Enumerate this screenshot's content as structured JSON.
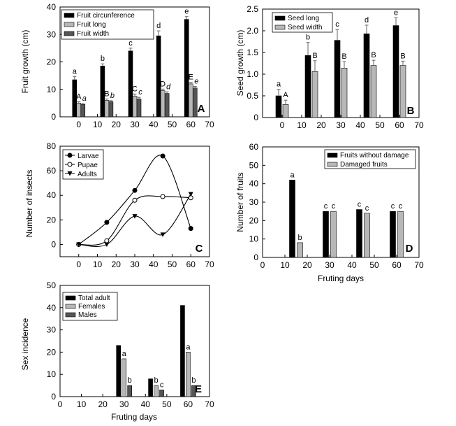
{
  "chart_data": [
    {
      "panel": "A",
      "type": "bar",
      "categories": [
        "0",
        "15",
        "30",
        "45",
        "60"
      ],
      "x_positions": [
        0,
        15,
        30,
        45,
        60
      ],
      "xticks": [
        "0",
        "10",
        "20",
        "30",
        "40",
        "50",
        "60",
        "70"
      ],
      "yticks": [
        "0",
        "10",
        "20",
        "30",
        "40"
      ],
      "xlim": [
        -10,
        70
      ],
      "ylim": [
        0,
        40
      ],
      "xlabel": "",
      "ylabel": "Fruit growth (cm)",
      "legend_position": "top-left",
      "series": [
        {
          "name": "Fruit circunference",
          "color": "#000000",
          "values": [
            13.5,
            18.5,
            24,
            29.5,
            35.5
          ],
          "errors": [
            1.2,
            0.8,
            1.0,
            1.8,
            1.0
          ],
          "letters": [
            "a",
            "b",
            "c",
            "d",
            "e"
          ]
        },
        {
          "name": "Fruit long",
          "color": "#b8b8b8",
          "values": [
            5,
            6,
            7.5,
            9.5,
            12
          ],
          "errors": [
            0.5,
            0.5,
            0.8,
            0.6,
            0.6
          ],
          "letters": [
            "A",
            "B",
            "C",
            "D",
            "E"
          ]
        },
        {
          "name": "Fruit width",
          "color": "#555555",
          "values": [
            4.5,
            5.5,
            6.5,
            8.5,
            10.5
          ],
          "errors": [
            0.4,
            0.4,
            0.6,
            0.6,
            0.6
          ],
          "letters": [
            "a",
            "b",
            "c",
            "d",
            "e"
          ]
        }
      ]
    },
    {
      "panel": "B",
      "type": "bar",
      "categories": [
        "0",
        "15",
        "30",
        "45",
        "60"
      ],
      "x_positions": [
        0,
        15,
        30,
        45,
        60
      ],
      "xticks": [
        "0",
        "10",
        "20",
        "30",
        "40",
        "50",
        "60",
        "70"
      ],
      "yticks": [
        "0",
        "0.5",
        "1.0",
        "1.5",
        "2.0",
        "2.5"
      ],
      "xlim": [
        -10,
        70
      ],
      "ylim": [
        0,
        2.5
      ],
      "xlabel": "",
      "ylabel": "Seed growth (cm)",
      "legend_position": "top-left",
      "series": [
        {
          "name": "Seed long",
          "color": "#000000",
          "values": [
            0.5,
            1.43,
            1.78,
            1.93,
            2.12
          ],
          "errors": [
            0.15,
            0.3,
            0.25,
            0.2,
            0.18
          ],
          "letters": [
            "a",
            "b",
            "c",
            "d",
            "e"
          ]
        },
        {
          "name": "Seed width",
          "color": "#b8b8b8",
          "values": [
            0.3,
            1.06,
            1.14,
            1.2,
            1.2
          ],
          "errors": [
            0.1,
            0.25,
            0.15,
            0.12,
            0.1
          ],
          "letters": [
            "A",
            "B",
            "B",
            "B",
            "B"
          ]
        }
      ]
    },
    {
      "panel": "C",
      "type": "line",
      "x": [
        0,
        15,
        30,
        45,
        60
      ],
      "xticks": [
        "0",
        "10",
        "20",
        "30",
        "40",
        "50",
        "60",
        "70"
      ],
      "yticks": [
        "0",
        "20",
        "40",
        "60",
        "80"
      ],
      "xlim": [
        -10,
        70
      ],
      "ylim": [
        -10,
        80
      ],
      "xlabel": "",
      "ylabel": "Number of insects",
      "legend_position": "top-left",
      "series": [
        {
          "name": "Larvae",
          "marker": "filled-circle",
          "values": [
            0,
            18,
            44,
            72,
            13
          ]
        },
        {
          "name": "Pupae",
          "marker": "open-circle",
          "values": [
            0,
            3,
            36,
            39,
            38
          ]
        },
        {
          "name": "Adults",
          "marker": "filled-triangle",
          "values": [
            0,
            0,
            23,
            8,
            41
          ]
        }
      ]
    },
    {
      "panel": "D",
      "type": "bar",
      "categories": [
        "15",
        "30",
        "45",
        "60"
      ],
      "x_positions": [
        15,
        30,
        45,
        60
      ],
      "xticks": [
        "0",
        "10",
        "20",
        "30",
        "40",
        "50",
        "60",
        "70"
      ],
      "yticks": [
        "0",
        "10",
        "20",
        "30",
        "40",
        "50",
        "60"
      ],
      "xlim": [
        0,
        70
      ],
      "ylim": [
        0,
        60
      ],
      "xlabel": "Fruting days",
      "ylabel": "Number of fruits",
      "legend_position": "top-right",
      "series": [
        {
          "name": "Fruits without damage",
          "color": "#000000",
          "values": [
            42,
            25,
            26,
            25
          ],
          "letters": [
            "a",
            "c",
            "c",
            "c"
          ]
        },
        {
          "name": "Damaged fruits",
          "color": "#b8b8b8",
          "values": [
            8,
            25,
            24,
            25
          ],
          "letters": [
            "b",
            "c",
            "c",
            "c"
          ]
        }
      ]
    },
    {
      "panel": "E",
      "type": "bar",
      "categories": [
        "30",
        "45",
        "60"
      ],
      "x_positions": [
        30,
        45,
        60
      ],
      "xticks": [
        "0",
        "10",
        "20",
        "30",
        "40",
        "50",
        "60",
        "70"
      ],
      "yticks": [
        "0",
        "10",
        "20",
        "30",
        "40",
        "50"
      ],
      "xlim": [
        0,
        70
      ],
      "ylim": [
        0,
        50
      ],
      "xlabel": "Fruting days",
      "ylabel": "Sex incidence",
      "legend_position": "top-left",
      "series": [
        {
          "name": "Total adult",
          "color": "#000000",
          "values": [
            23,
            8,
            41
          ],
          "letters": [
            "",
            "",
            ""
          ]
        },
        {
          "name": "Females",
          "color": "#b8b8b8",
          "values": [
            17,
            5,
            20
          ],
          "letters": [
            "a",
            "b",
            "a"
          ]
        },
        {
          "name": "Males",
          "color": "#555555",
          "values": [
            5,
            3,
            5
          ],
          "letters": [
            "b",
            "c",
            "b"
          ]
        }
      ]
    }
  ]
}
